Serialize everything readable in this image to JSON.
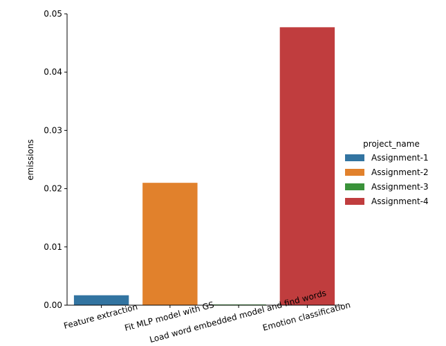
{
  "chart_data": {
    "type": "bar",
    "categories": [
      "Feature extraction",
      "Fit MLP model with GS",
      "Load word embedded model and find words",
      "Emotion classification"
    ],
    "series": [
      {
        "name": "Assignment-1",
        "color": "#3274a1",
        "values": [
          0.0017,
          0,
          0,
          0
        ]
      },
      {
        "name": "Assignment-2",
        "color": "#e1812c",
        "values": [
          0,
          0.021,
          0,
          0
        ]
      },
      {
        "name": "Assignment-3",
        "color": "#3a923a",
        "values": [
          0,
          0,
          0.0001,
          0
        ]
      },
      {
        "name": "Assignment-4",
        "color": "#c03d3e",
        "values": [
          0,
          0,
          0,
          0.0477
        ]
      }
    ],
    "title": "",
    "xlabel": "",
    "ylabel": "emissions",
    "ylim": [
      0,
      0.05
    ],
    "yticks": [
      "0.00",
      "0.01",
      "0.02",
      "0.03",
      "0.04",
      "0.05"
    ],
    "legend": {
      "title": "project_name",
      "position": "right"
    },
    "grid": false
  }
}
